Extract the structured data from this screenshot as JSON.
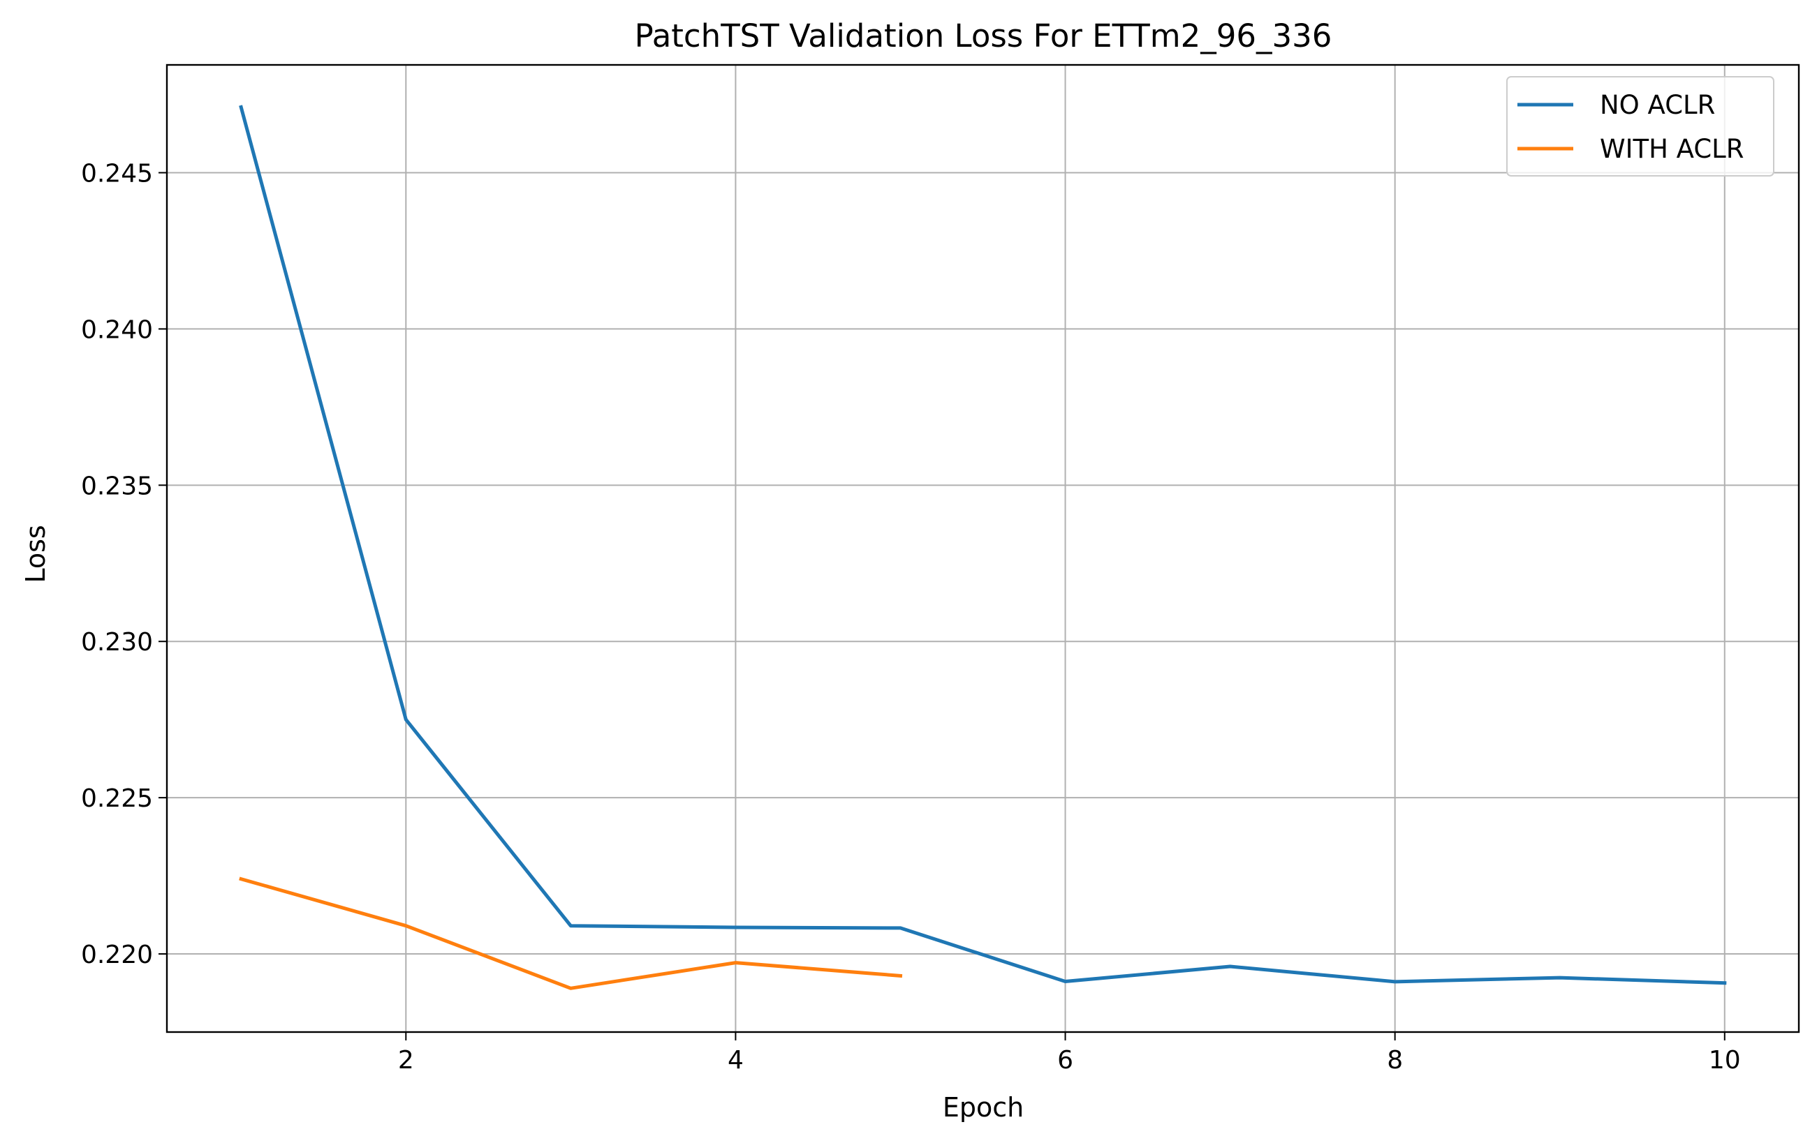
{
  "chart_data": {
    "type": "line",
    "title": "PatchTST Validation Loss For ETTm2_96_336",
    "xlabel": "Epoch",
    "ylabel": "Loss",
    "xlim": [
      0.55,
      10.45
    ],
    "ylim": [
      0.2175,
      0.24845
    ],
    "x_ticks": [
      2,
      4,
      6,
      8,
      10
    ],
    "x_tick_labels": [
      "2",
      "4",
      "6",
      "8",
      "10"
    ],
    "y_ticks": [
      0.22,
      0.225,
      0.23,
      0.235,
      0.24,
      0.245
    ],
    "y_tick_labels": [
      "0.220",
      "0.225",
      "0.230",
      "0.235",
      "0.240",
      "0.245"
    ],
    "grid": true,
    "legend_position": "top-right",
    "series": [
      {
        "name": "NO ACLR",
        "color": "#1f77b4",
        "x": [
          1,
          2,
          3,
          4,
          5,
          6,
          7,
          8,
          9,
          10
        ],
        "values": [
          0.2471,
          0.2275,
          0.2209,
          0.22085,
          0.22083,
          0.21912,
          0.2196,
          0.21911,
          0.21924,
          0.21907
        ]
      },
      {
        "name": "WITH ACLR",
        "color": "#ff7f0e",
        "x": [
          1,
          2,
          3,
          4,
          5
        ],
        "values": [
          0.2224,
          0.2209,
          0.2189,
          0.21972,
          0.2193
        ]
      }
    ]
  }
}
